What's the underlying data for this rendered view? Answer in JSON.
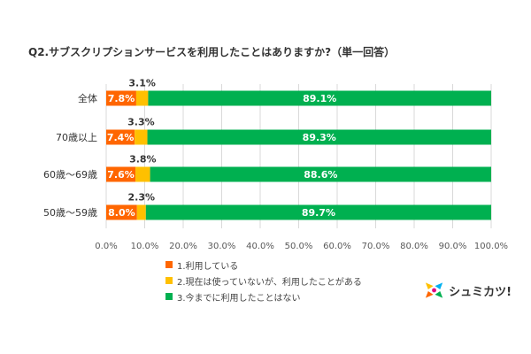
{
  "colors": {
    "series": [
      "#FF6600",
      "#FFC000",
      "#00B050"
    ],
    "grid": "#D9D9D9",
    "axis_text": "#595959"
  },
  "chart_data": {
    "type": "bar",
    "stacked": true,
    "orientation": "horizontal",
    "title": "Q2.サブスクリプションサービスを利用したことはありますか?（単一回答）",
    "categories": [
      "全体",
      "70歳以上",
      "60歳～69歳",
      "50歳～59歳"
    ],
    "series": [
      {
        "name": "1.利用している",
        "values": [
          7.8,
          7.4,
          7.6,
          8.0
        ]
      },
      {
        "name": "2.現在は使っていないが、利用したことがある",
        "values": [
          3.1,
          3.3,
          3.8,
          2.3
        ]
      },
      {
        "name": "3.今までに利用したことはない",
        "values": [
          89.1,
          89.3,
          88.6,
          89.7
        ]
      }
    ],
    "xlim": [
      0,
      100
    ],
    "xticks": [
      "0.0%",
      "10.0%",
      "20.0%",
      "30.0%",
      "40.0%",
      "50.0%",
      "60.0%",
      "70.0%",
      "80.0%",
      "90.0%",
      "100.0%"
    ],
    "grid": true,
    "legend_position": "bottom"
  },
  "logo": {
    "text": "シュミカツ!"
  }
}
